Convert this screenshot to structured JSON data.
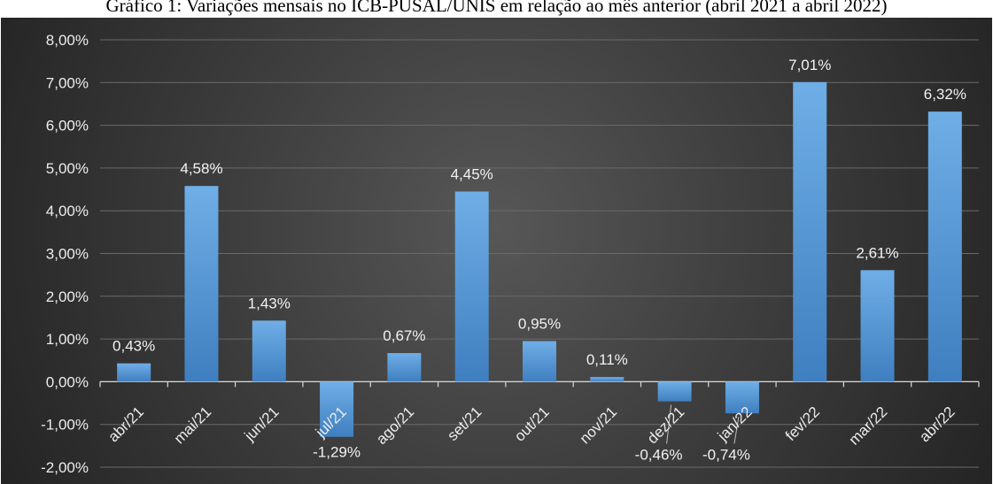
{
  "title": "Gráfico 1: Variações mensais no ICB-PUSAL/UNIS em relação ao mês anterior (abril 2021 a abril 2022)",
  "chart_data": {
    "type": "bar",
    "title": "Gráfico 1: Variações mensais no ICB-PUSAL/UNIS em relação ao mês anterior (abril 2021 a abril 2022)",
    "xlabel": "",
    "ylabel": "",
    "categories": [
      "abr/21",
      "mai/21",
      "jun/21",
      "jul/21",
      "ago/21",
      "set/21",
      "out/21",
      "nov/21",
      "dez/21",
      "jan/22",
      "fev/22",
      "mar/22",
      "abr/22"
    ],
    "values": [
      0.43,
      4.58,
      1.43,
      -1.29,
      0.67,
      4.45,
      0.95,
      0.11,
      -0.46,
      -0.74,
      7.01,
      2.61,
      6.32
    ],
    "value_labels": [
      "0,43%",
      "4,58%",
      "1,43%",
      "-1,29%",
      "0,67%",
      "4,45%",
      "0,95%",
      "0,11%",
      "-0,46%",
      "-0,74%",
      "7,01%",
      "2,61%",
      "6,32%"
    ],
    "y_ticks": [
      8,
      7,
      6,
      5,
      4,
      3,
      2,
      1,
      0,
      -1,
      -2
    ],
    "y_tick_labels": [
      "8,00%",
      "7,00%",
      "6,00%",
      "5,00%",
      "4,00%",
      "3,00%",
      "2,00%",
      "1,00%",
      "0,00%",
      "-1,00%",
      "-2,00%"
    ],
    "ylim": [
      -2,
      8
    ],
    "grid": true,
    "legend": "none",
    "colors": {
      "bar": "#5b9bd5",
      "bar_top": "#6faee6",
      "bar_bottom": "#3f7fc0",
      "text": "#ececec",
      "grid": "#6a6a6a",
      "axis": "#d9d9d9"
    }
  }
}
